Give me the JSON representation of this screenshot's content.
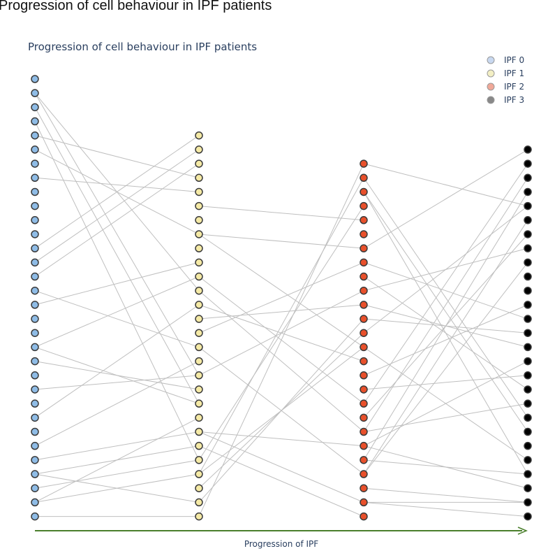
{
  "page": {
    "heading": "Progression of cell behaviour in IPF patients"
  },
  "colors": {
    "link": "#bfbfbf",
    "arrow": "#4a7f2c",
    "marker_outline": "#3a3a3a"
  },
  "chart_data": {
    "type": "scatter",
    "title": "Progression of cell behaviour in IPF patients",
    "xlabel": "Progression of IPF",
    "ylabel": "",
    "grid": false,
    "legend_position": "top-right",
    "series": [
      {
        "name": "IPF 0",
        "color": "#8fbce6",
        "x": 0,
        "y": [
          1,
          2,
          3,
          4,
          5,
          6,
          7,
          8,
          9,
          10,
          11,
          12,
          13,
          14,
          15,
          16,
          17,
          18,
          19,
          20,
          21,
          22,
          23,
          24,
          25,
          26,
          27,
          28,
          29,
          30,
          31,
          32
        ]
      },
      {
        "name": "IPF 1",
        "color": "#f5eaa6",
        "x": 1,
        "y": [
          5,
          6,
          7,
          8,
          9,
          10,
          11,
          12,
          13,
          14,
          15,
          16,
          17,
          18,
          19,
          20,
          21,
          22,
          23,
          24,
          25,
          26,
          27,
          28,
          29,
          30,
          31,
          32
        ]
      },
      {
        "name": "IPF 2",
        "color": "#e8502b",
        "x": 2,
        "y": [
          7,
          8,
          9,
          10,
          11,
          12,
          13,
          14,
          15,
          16,
          17,
          18,
          19,
          20,
          21,
          22,
          23,
          24,
          25,
          26,
          27,
          28,
          29,
          30,
          31,
          32
        ]
      },
      {
        "name": "IPF 3",
        "color": "#000000",
        "x": 3,
        "y": [
          6,
          7,
          8,
          9,
          10,
          11,
          12,
          13,
          14,
          15,
          16,
          17,
          18,
          19,
          20,
          21,
          22,
          23,
          24,
          25,
          26,
          27,
          28,
          29,
          30,
          31,
          32
        ]
      }
    ],
    "legend_swatches": [
      "#c8d8f0",
      "#f3efc4",
      "#f0a898",
      "#888888"
    ],
    "links": [
      [
        [
          0,
          2
        ],
        [
          1,
          16
        ]
      ],
      [
        [
          0,
          2
        ],
        [
          1,
          22
        ]
      ],
      [
        [
          0,
          3
        ],
        [
          1,
          24
        ]
      ],
      [
        [
          0,
          4
        ],
        [
          1,
          28
        ]
      ],
      [
        [
          0,
          5
        ],
        [
          1,
          8
        ]
      ],
      [
        [
          0,
          6
        ],
        [
          1,
          12
        ]
      ],
      [
        [
          0,
          8
        ],
        [
          1,
          9
        ]
      ],
      [
        [
          0,
          13
        ],
        [
          1,
          5
        ]
      ],
      [
        [
          0,
          15
        ],
        [
          1,
          7
        ]
      ],
      [
        [
          0,
          16
        ],
        [
          1,
          20
        ]
      ],
      [
        [
          0,
          17
        ],
        [
          1,
          14
        ]
      ],
      [
        [
          0,
          20
        ],
        [
          1,
          15
        ]
      ],
      [
        [
          0,
          20
        ],
        [
          1,
          24
        ]
      ],
      [
        [
          0,
          21
        ],
        [
          1,
          23
        ]
      ],
      [
        [
          0,
          23
        ],
        [
          1,
          22
        ]
      ],
      [
        [
          0,
          25
        ],
        [
          1,
          17
        ]
      ],
      [
        [
          0,
          27
        ],
        [
          1,
          21
        ]
      ],
      [
        [
          0,
          28
        ],
        [
          1,
          26
        ]
      ],
      [
        [
          0,
          29
        ],
        [
          1,
          27
        ]
      ],
      [
        [
          0,
          29
        ],
        [
          1,
          31
        ]
      ],
      [
        [
          0,
          30
        ],
        [
          1,
          28
        ]
      ],
      [
        [
          0,
          31
        ],
        [
          1,
          25
        ]
      ],
      [
        [
          0,
          31
        ],
        [
          1,
          29
        ]
      ],
      [
        [
          0,
          32
        ],
        [
          1,
          32
        ]
      ],
      [
        [
          0,
          14
        ],
        [
          1,
          6
        ]
      ],
      [
        [
          1,
          10
        ],
        [
          2,
          11
        ]
      ],
      [
        [
          1,
          12
        ],
        [
          2,
          20
        ]
      ],
      [
        [
          1,
          15
        ],
        [
          2,
          24
        ]
      ],
      [
        [
          1,
          16
        ],
        [
          2,
          26
        ]
      ],
      [
        [
          1,
          17
        ],
        [
          2,
          21
        ]
      ],
      [
        [
          1,
          19
        ],
        [
          2,
          14
        ]
      ],
      [
        [
          1,
          20
        ],
        [
          2,
          29
        ]
      ],
      [
        [
          1,
          22
        ],
        [
          2,
          16
        ]
      ],
      [
        [
          1,
          26
        ],
        [
          2,
          27
        ]
      ],
      [
        [
          1,
          26
        ],
        [
          2,
          31
        ]
      ],
      [
        [
          1,
          27
        ],
        [
          2,
          32
        ]
      ],
      [
        [
          1,
          28
        ],
        [
          2,
          10
        ]
      ],
      [
        [
          1,
          29
        ],
        [
          2,
          8
        ]
      ],
      [
        [
          1,
          29
        ],
        [
          2,
          20
        ]
      ],
      [
        [
          1,
          30
        ],
        [
          2,
          19
        ]
      ],
      [
        [
          1,
          31
        ],
        [
          2,
          18
        ]
      ],
      [
        [
          1,
          32
        ],
        [
          2,
          7
        ]
      ],
      [
        [
          1,
          18
        ],
        [
          2,
          17
        ]
      ],
      [
        [
          1,
          12
        ],
        [
          2,
          13
        ]
      ],
      [
        [
          2,
          7
        ],
        [
          3,
          10
        ]
      ],
      [
        [
          2,
          8
        ],
        [
          3,
          25
        ]
      ],
      [
        [
          2,
          9
        ],
        [
          3,
          26
        ]
      ],
      [
        [
          2,
          9
        ],
        [
          3,
          29
        ]
      ],
      [
        [
          2,
          13
        ],
        [
          3,
          6
        ]
      ],
      [
        [
          2,
          16
        ],
        [
          3,
          13
        ]
      ],
      [
        [
          2,
          17
        ],
        [
          3,
          20
        ]
      ],
      [
        [
          2,
          18
        ],
        [
          3,
          19
        ]
      ],
      [
        [
          2,
          19
        ],
        [
          3,
          10
        ]
      ],
      [
        [
          2,
          20
        ],
        [
          3,
          28
        ]
      ],
      [
        [
          2,
          22
        ],
        [
          3,
          17
        ]
      ],
      [
        [
          2,
          23
        ],
        [
          3,
          22
        ]
      ],
      [
        [
          2,
          26
        ],
        [
          3,
          24
        ]
      ],
      [
        [
          2,
          27
        ],
        [
          3,
          30
        ]
      ],
      [
        [
          2,
          28
        ],
        [
          3,
          29
        ]
      ],
      [
        [
          2,
          29
        ],
        [
          3,
          11
        ]
      ],
      [
        [
          2,
          29
        ],
        [
          3,
          14
        ]
      ],
      [
        [
          2,
          30
        ],
        [
          3,
          31
        ]
      ],
      [
        [
          2,
          31
        ],
        [
          3,
          31
        ]
      ],
      [
        [
          2,
          31
        ],
        [
          3,
          32
        ]
      ],
      [
        [
          2,
          28
        ],
        [
          3,
          9
        ]
      ],
      [
        [
          2,
          26
        ],
        [
          3,
          8
        ]
      ],
      [
        [
          2,
          24
        ],
        [
          3,
          7
        ]
      ],
      [
        [
          2,
          14
        ],
        [
          3,
          18
        ]
      ],
      [
        [
          2,
          25
        ],
        [
          3,
          12
        ]
      ],
      [
        [
          2,
          27
        ],
        [
          3,
          21
        ]
      ],
      [
        [
          2,
          15
        ],
        [
          3,
          23
        ]
      ]
    ]
  }
}
